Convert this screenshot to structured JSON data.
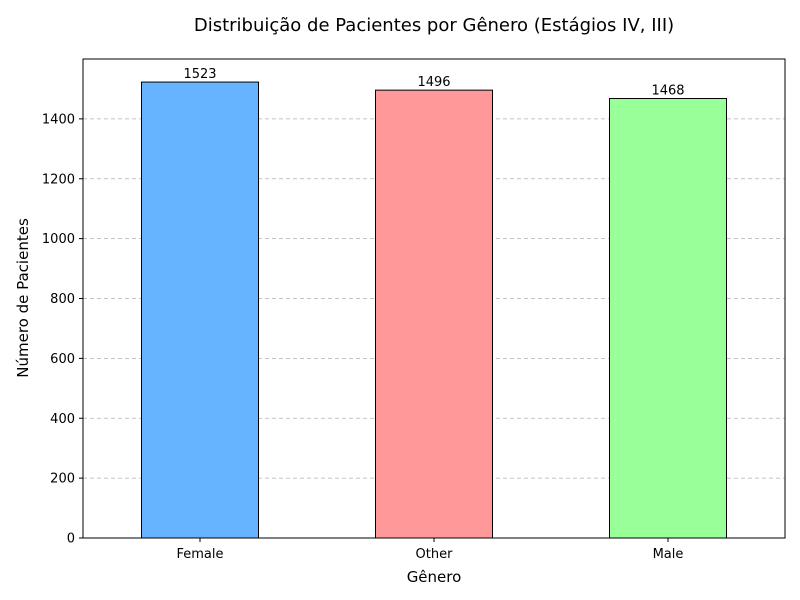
{
  "chart_data": {
    "type": "bar",
    "title": "Distribuição de Pacientes por Gênero (Estágios IV, III)",
    "xlabel": "Gênero",
    "ylabel": "Número de Pacientes",
    "categories": [
      "Female",
      "Other",
      "Male"
    ],
    "values": [
      1523,
      1496,
      1468
    ],
    "data_labels": [
      "1523",
      "1496",
      "1468"
    ],
    "colors": [
      "#66b3ff",
      "#ff9999",
      "#99ff99"
    ],
    "ylim": [
      0,
      1600
    ],
    "yticks": [
      0,
      200,
      400,
      600,
      800,
      1000,
      1200,
      1400
    ],
    "ytick_labels": [
      "0",
      "200",
      "400",
      "600",
      "800",
      "1000",
      "1200",
      "1400"
    ],
    "grid": "y-dashed",
    "legend": "none"
  }
}
